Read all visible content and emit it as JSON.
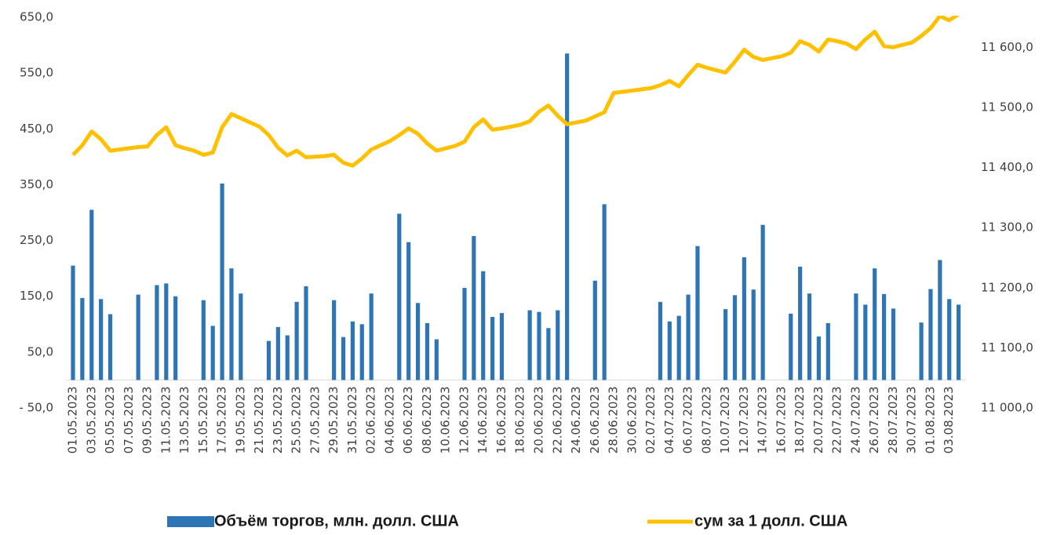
{
  "chart_data": {
    "type": "bar",
    "categories": [
      "01.05.2023",
      null,
      "03.05.2023",
      null,
      "05.05.2023",
      null,
      "07.05.2023",
      null,
      "09.05.2023",
      null,
      "11.05.2023",
      null,
      "13.05.2023",
      null,
      "15.05.2023",
      null,
      "17.05.2023",
      null,
      "19.05.2023",
      null,
      "21.05.2023",
      null,
      "23.05.2023",
      null,
      "25.05.2023",
      null,
      "27.05.2023",
      null,
      "29.05.2023",
      null,
      "31.05.2023",
      null,
      "02.06.2023",
      null,
      "04.06.2023",
      null,
      "06.06.2023",
      null,
      "08.06.2023",
      null,
      "10.06.2023",
      null,
      "12.06.2023",
      null,
      "14.06.2023",
      null,
      "16.06.2023",
      null,
      "18.06.2023",
      null,
      "20.06.2023",
      null,
      "22.06.2023",
      null,
      "24.06.2023",
      null,
      "26.06.2023",
      null,
      "28.06.2023",
      null,
      "30.06.2023",
      null,
      "02.07.2023",
      null,
      "04.07.2023",
      null,
      "06.07.2023",
      null,
      "08.07.2023",
      null,
      "10.07.2023",
      null,
      "12.07.2023",
      null,
      "14.07.2023",
      null,
      "16.07.2023",
      null,
      "18.07.2023",
      null,
      "20.07.2023",
      null,
      "22.07.2023",
      null,
      "24.07.2023",
      null,
      "26.07.2023",
      null,
      "28.07.2023",
      null,
      "30.07.2023",
      null,
      "01.08.2023",
      null,
      "03.08.2023",
      null
    ],
    "series": [
      {
        "name": "Объём торгов, млн. долл. США",
        "type": "bar",
        "color": "#2e75b6",
        "values": [
          205,
          147,
          305,
          145,
          118,
          null,
          null,
          153,
          null,
          170,
          173,
          150,
          null,
          null,
          143,
          97,
          352,
          200,
          155,
          null,
          null,
          70,
          95,
          80,
          140,
          168,
          null,
          null,
          143,
          77,
          105,
          100,
          155,
          null,
          null,
          298,
          247,
          138,
          102,
          73,
          null,
          null,
          165,
          258,
          195,
          113,
          120,
          null,
          null,
          125,
          122,
          93,
          125,
          585,
          null,
          null,
          178,
          315,
          null,
          null,
          null,
          null,
          null,
          140,
          105,
          115,
          153,
          240,
          null,
          null,
          127,
          152,
          220,
          162,
          278,
          null,
          null,
          119,
          203,
          155,
          78,
          102,
          null,
          null,
          155,
          135,
          200,
          154,
          128,
          null,
          null,
          103,
          163,
          215,
          145,
          135
        ]
      },
      {
        "name": "сум за 1 долл. США",
        "type": "line",
        "axis": "y2",
        "color": "#ffc000",
        "values": [
          11421,
          11437,
          11460,
          11447,
          11428,
          11430,
          11432,
          11434,
          11435,
          11454,
          11467,
          11437,
          11432,
          11428,
          11421,
          11425,
          11467,
          11489,
          11482,
          11475,
          11468,
          11454,
          11433,
          11420,
          11428,
          11417,
          11418,
          11419,
          11421,
          11408,
          11403,
          11415,
          11430,
          11437,
          11444,
          11454,
          11465,
          11456,
          11440,
          11428,
          11432,
          11436,
          11443,
          11467,
          11480,
          11463,
          11465,
          11468,
          11471,
          11477,
          11493,
          11503,
          11486,
          11472,
          11475,
          11478,
          11485,
          11492,
          11524,
          11526,
          11528,
          11530,
          11532,
          11537,
          11544,
          11535,
          11554,
          11571,
          11566,
          11562,
          11558,
          11576,
          11596,
          11584,
          11579,
          11582,
          11585,
          11591,
          11610,
          11604,
          11593,
          11613,
          11610,
          11606,
          11597,
          11613,
          11626,
          11602,
          11600,
          11604,
          11608,
          11619,
          11632,
          11652,
          11645,
          11655
        ]
      }
    ],
    "ylim": [
      -50,
      650
    ],
    "yticks": [
      {
        "value": -50,
        "label": "- 50,0"
      },
      {
        "value": 50,
        "label": "50,0"
      },
      {
        "value": 150,
        "label": "150,0"
      },
      {
        "value": 250,
        "label": "250,0"
      },
      {
        "value": 350,
        "label": "350,0"
      },
      {
        "value": 450,
        "label": "450,0"
      },
      {
        "value": 550,
        "label": "550,0"
      },
      {
        "value": 650,
        "label": "650,0"
      }
    ],
    "y2lim": [
      11000,
      11650
    ],
    "y2ticks": [
      {
        "value": 11000,
        "label": "11 000,0"
      },
      {
        "value": 11100,
        "label": "11 100,0"
      },
      {
        "value": 11200,
        "label": "11 200,0"
      },
      {
        "value": 11300,
        "label": "11 300,0"
      },
      {
        "value": 11400,
        "label": "11 400,0"
      },
      {
        "value": 11500,
        "label": "11 500,0"
      },
      {
        "value": 11600,
        "label": "11 600,0"
      }
    ],
    "grid": false,
    "legend": "bottom"
  }
}
